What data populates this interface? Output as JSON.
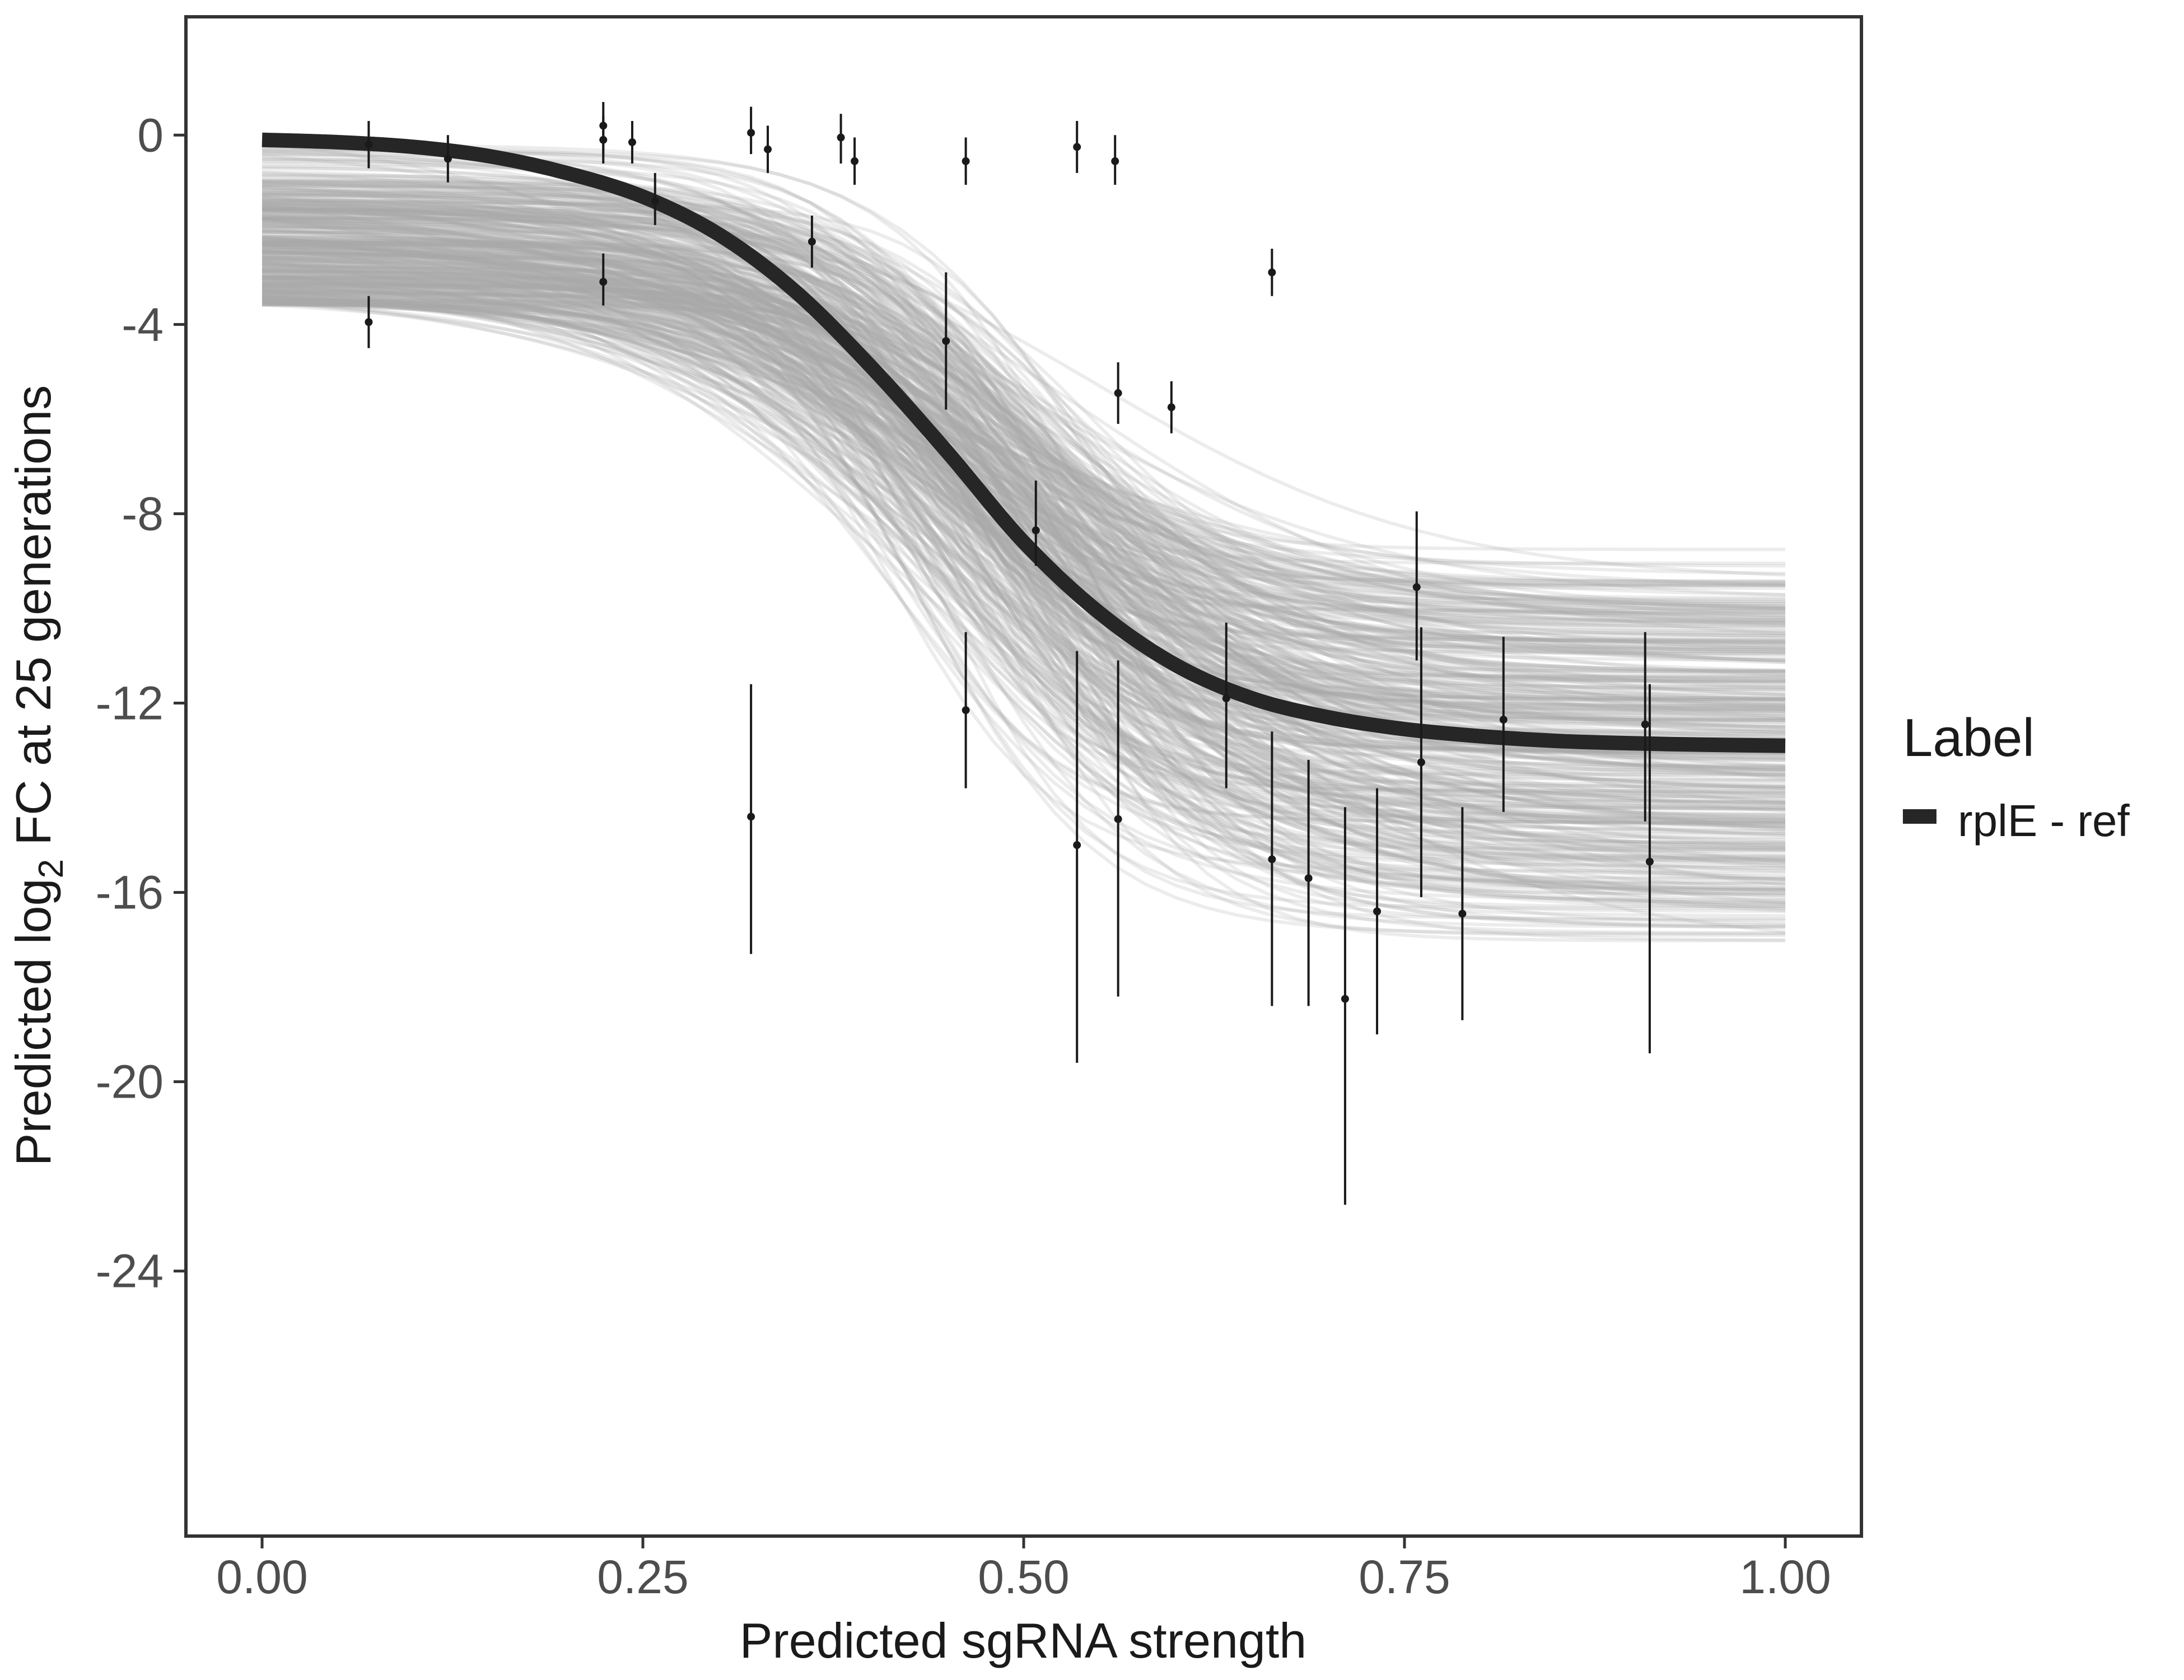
{
  "chart_data": {
    "type": "line",
    "xlabel": "Predicted sgRNA strength",
    "ylabel_parts": {
      "prefix": "Predicted  log",
      "subscript": "2",
      "suffix": " FC at 25 generations"
    },
    "xlim": [
      -0.05,
      1.05
    ],
    "ylim": [
      -29.6,
      2.5
    ],
    "x_ticks": [
      {
        "value": 0,
        "label": "0.00"
      },
      {
        "value": 0.25,
        "label": "0.25"
      },
      {
        "value": 0.5,
        "label": "0.50"
      },
      {
        "value": 0.75,
        "label": "0.75"
      },
      {
        "value": 1,
        "label": "1.00"
      }
    ],
    "y_ticks": [
      {
        "value": 0,
        "label": "0"
      },
      {
        "value": -4,
        "label": "-4"
      },
      {
        "value": -8,
        "label": "-8"
      },
      {
        "value": -12,
        "label": "-12"
      },
      {
        "value": -16,
        "label": "-16"
      },
      {
        "value": -20,
        "label": "-20"
      },
      {
        "value": -24,
        "label": "-24"
      }
    ],
    "grid": false,
    "legend": {
      "title": "Label",
      "position": "right",
      "entries": [
        {
          "label": "rplE - ref",
          "color": "#262626"
        }
      ]
    },
    "fit_curve": {
      "name": "rplE - ref",
      "color": "#262626",
      "x": [
        0,
        0.05,
        0.1,
        0.15,
        0.2,
        0.25,
        0.3,
        0.35,
        0.4,
        0.45,
        0.5,
        0.55,
        0.6,
        0.65,
        0.7,
        0.75,
        0.8,
        0.85,
        0.9,
        0.95,
        1.0
      ],
      "y": [
        -0.1,
        -0.15,
        -0.25,
        -0.45,
        -0.8,
        -1.3,
        -2.1,
        -3.3,
        -4.9,
        -6.7,
        -8.6,
        -10.1,
        -11.2,
        -11.9,
        -12.3,
        -12.55,
        -12.7,
        -12.8,
        -12.85,
        -12.88,
        -12.9
      ]
    },
    "posterior_draws": {
      "count": 400,
      "color": "#aaaaaa",
      "start_range": [
        -3.6,
        0
      ],
      "end_range": [
        -18.0,
        -7.9
      ],
      "midpoint_range": [
        0.38,
        0.58
      ],
      "slope_range": [
        7,
        20
      ]
    },
    "points": [
      {
        "x": 0.07,
        "y": -0.2,
        "lo": -0.7,
        "hi": 0.3
      },
      {
        "x": 0.07,
        "y": -3.95,
        "lo": -4.5,
        "hi": -3.4
      },
      {
        "x": 0.122,
        "y": -0.5,
        "lo": -1.0,
        "hi": 0.0
      },
      {
        "x": 0.224,
        "y": 0.2,
        "lo": -0.4,
        "hi": 0.7
      },
      {
        "x": 0.224,
        "y": -0.1,
        "lo": -0.6,
        "hi": 0.4
      },
      {
        "x": 0.224,
        "y": -3.1,
        "lo": -3.6,
        "hi": -2.5
      },
      {
        "x": 0.243,
        "y": -0.15,
        "lo": -0.6,
        "hi": 0.3
      },
      {
        "x": 0.258,
        "y": -1.4,
        "lo": -1.9,
        "hi": -0.8
      },
      {
        "x": 0.321,
        "y": 0.05,
        "lo": -0.4,
        "hi": 0.6
      },
      {
        "x": 0.321,
        "y": -14.4,
        "lo": -17.3,
        "hi": -11.6
      },
      {
        "x": 0.332,
        "y": -0.3,
        "lo": -0.8,
        "hi": 0.2
      },
      {
        "x": 0.361,
        "y": -2.25,
        "lo": -2.8,
        "hi": -1.7
      },
      {
        "x": 0.38,
        "y": -0.05,
        "lo": -0.6,
        "hi": 0.45
      },
      {
        "x": 0.389,
        "y": -0.55,
        "lo": -1.05,
        "hi": -0.05
      },
      {
        "x": 0.449,
        "y": -4.35,
        "lo": -5.8,
        "hi": -2.9
      },
      {
        "x": 0.462,
        "y": -0.55,
        "lo": -1.05,
        "hi": -0.05
      },
      {
        "x": 0.462,
        "y": -12.15,
        "lo": -13.8,
        "hi": -10.5
      },
      {
        "x": 0.508,
        "y": -8.35,
        "lo": -9.1,
        "hi": -7.3
      },
      {
        "x": 0.535,
        "y": -0.25,
        "lo": -0.8,
        "hi": 0.3
      },
      {
        "x": 0.535,
        "y": -15.0,
        "lo": -19.6,
        "hi": -10.9
      },
      {
        "x": 0.56,
        "y": -0.55,
        "lo": -1.05,
        "hi": 0.0
      },
      {
        "x": 0.562,
        "y": -5.45,
        "lo": -6.1,
        "hi": -4.8
      },
      {
        "x": 0.562,
        "y": -14.45,
        "lo": -18.2,
        "hi": -11.1
      },
      {
        "x": 0.597,
        "y": -5.75,
        "lo": -6.3,
        "hi": -5.2
      },
      {
        "x": 0.633,
        "y": -11.9,
        "lo": -13.8,
        "hi": -10.3
      },
      {
        "x": 0.663,
        "y": -2.9,
        "lo": -3.4,
        "hi": -2.4
      },
      {
        "x": 0.663,
        "y": -15.3,
        "lo": -18.4,
        "hi": -12.6
      },
      {
        "x": 0.687,
        "y": -15.7,
        "lo": -18.4,
        "hi": -13.2
      },
      {
        "x": 0.711,
        "y": -18.25,
        "lo": -22.6,
        "hi": -14.2
      },
      {
        "x": 0.732,
        "y": -16.4,
        "lo": -19.0,
        "hi": -13.8
      },
      {
        "x": 0.758,
        "y": -9.55,
        "lo": -11.1,
        "hi": -7.95
      },
      {
        "x": 0.761,
        "y": -13.25,
        "lo": -16.1,
        "hi": -10.4
      },
      {
        "x": 0.788,
        "y": -16.45,
        "lo": -18.7,
        "hi": -14.2
      },
      {
        "x": 0.815,
        "y": -12.35,
        "lo": -14.3,
        "hi": -10.6
      },
      {
        "x": 0.908,
        "y": -12.45,
        "lo": -14.5,
        "hi": -10.5
      },
      {
        "x": 0.911,
        "y": -15.35,
        "lo": -19.4,
        "hi": -11.6
      }
    ]
  }
}
